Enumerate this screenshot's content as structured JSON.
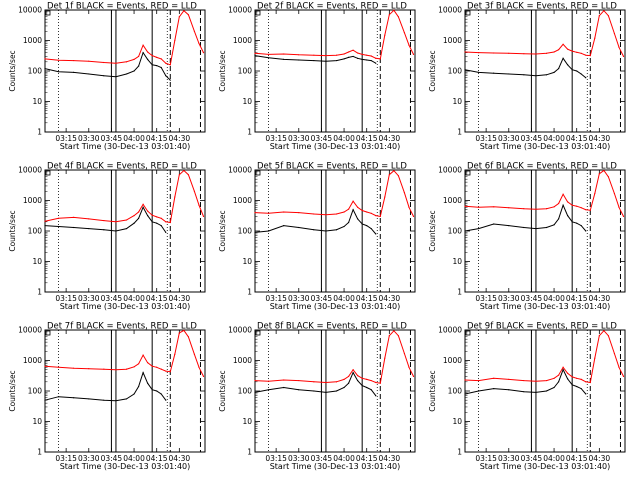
{
  "chart_data": {
    "type": "line",
    "layout": "3x3 grid",
    "y_scale": "log",
    "ylim": [
      1,
      10000
    ],
    "xlim": [
      "03:01",
      "04:47"
    ],
    "x_ticks": [
      "03:15",
      "03:30",
      "03:45",
      "04:00",
      "04:15",
      "04:30"
    ],
    "y_ticks": [
      "1",
      "10",
      "100",
      "1000",
      "10000"
    ],
    "ylabel": "Counts/sec",
    "xlabel": "Start Time (30-Dec-13 03:01:40)",
    "series_colors": {
      "events": "#000000",
      "lld": "#ff0000"
    },
    "vertical_markers": {
      "dotted": [
        "03:10",
        "04:22"
      ],
      "solid": [
        "03:45",
        "03:48",
        "04:12"
      ],
      "dashed": [
        "04:24",
        "04:44"
      ]
    },
    "panels": [
      {
        "title": "Det 1f BLACK = Events, RED = LLD",
        "x": [
          "03:01",
          "03:10",
          "03:20",
          "03:30",
          "03:40",
          "03:48",
          "03:55",
          "04:00",
          "04:03",
          "04:06",
          "04:09",
          "04:12",
          "04:15",
          "04:18",
          "04:21",
          "04:24",
          "04:27",
          "04:30",
          "04:33",
          "04:36",
          "04:40",
          "04:43",
          "04:46"
        ],
        "events": [
          120,
          95,
          90,
          80,
          70,
          65,
          80,
          100,
          145,
          400,
          240,
          160,
          150,
          130,
          70,
          50,
          0,
          0,
          0,
          0,
          0,
          0,
          0
        ],
        "lld": [
          250,
          225,
          220,
          210,
          190,
          180,
          200,
          240,
          300,
          700,
          420,
          320,
          280,
          250,
          180,
          160,
          1000,
          6000,
          9500,
          7000,
          2000,
          800,
          400
        ]
      },
      {
        "title": "Det 2f BLACK = Events, RED = LLD",
        "x": [
          "03:01",
          "03:10",
          "03:20",
          "03:30",
          "03:40",
          "03:48",
          "03:55",
          "04:00",
          "04:03",
          "04:06",
          "04:09",
          "04:12",
          "04:15",
          "04:18",
          "04:21",
          "04:24",
          "04:27",
          "04:30",
          "04:33",
          "04:36",
          "04:40",
          "04:43",
          "04:46"
        ],
        "events": [
          320,
          270,
          240,
          230,
          220,
          210,
          220,
          250,
          280,
          300,
          260,
          240,
          230,
          220,
          180,
          0,
          0,
          0,
          0,
          0,
          0,
          0,
          0
        ],
        "lld": [
          380,
          350,
          360,
          340,
          330,
          320,
          330,
          360,
          420,
          480,
          390,
          350,
          330,
          310,
          260,
          250,
          1500,
          7000,
          9800,
          6000,
          1800,
          700,
          350
        ]
      },
      {
        "title": "Det 3f BLACK = Events, RED = LLD",
        "x": [
          "03:01",
          "03:10",
          "03:20",
          "03:30",
          "03:40",
          "03:48",
          "03:55",
          "04:00",
          "04:03",
          "04:06",
          "04:09",
          "04:12",
          "04:15",
          "04:18",
          "04:21",
          "04:24",
          "04:27",
          "04:30",
          "04:33",
          "04:36",
          "04:40",
          "04:43",
          "04:46"
        ],
        "events": [
          110,
          90,
          85,
          80,
          75,
          70,
          75,
          90,
          120,
          260,
          160,
          110,
          100,
          80,
          60,
          0,
          0,
          0,
          0,
          0,
          0,
          0,
          0
        ],
        "lld": [
          420,
          400,
          390,
          380,
          370,
          360,
          380,
          420,
          500,
          750,
          520,
          450,
          410,
          380,
          330,
          320,
          1200,
          6500,
          9500,
          6500,
          1700,
          600,
          300
        ]
      },
      {
        "title": "Det 4f BLACK = Events, RED = LLD",
        "x": [
          "03:01",
          "03:10",
          "03:20",
          "03:30",
          "03:40",
          "03:48",
          "03:55",
          "04:00",
          "04:03",
          "04:06",
          "04:09",
          "04:12",
          "04:15",
          "04:18",
          "04:21",
          "04:24",
          "04:27",
          "04:30",
          "04:33",
          "04:36",
          "04:40",
          "04:43",
          "04:46"
        ],
        "events": [
          150,
          140,
          130,
          120,
          110,
          100,
          120,
          180,
          260,
          600,
          320,
          200,
          180,
          150,
          90,
          0,
          0,
          0,
          0,
          0,
          0,
          0,
          0
        ],
        "lld": [
          210,
          260,
          280,
          250,
          220,
          200,
          230,
          320,
          420,
          750,
          450,
          330,
          290,
          260,
          200,
          190,
          1300,
          7000,
          9600,
          7000,
          2000,
          700,
          300
        ]
      },
      {
        "title": "Det 5f BLACK = Events, RED = LLD",
        "x": [
          "03:01",
          "03:10",
          "03:20",
          "03:30",
          "03:40",
          "03:48",
          "03:55",
          "04:00",
          "04:03",
          "04:06",
          "04:09",
          "04:12",
          "04:15",
          "04:18",
          "04:21",
          "04:24",
          "04:27",
          "04:30",
          "04:33",
          "04:36",
          "04:40",
          "04:43",
          "04:46"
        ],
        "events": [
          90,
          100,
          150,
          130,
          110,
          100,
          110,
          140,
          190,
          500,
          250,
          170,
          150,
          120,
          80,
          0,
          0,
          0,
          0,
          0,
          0,
          0,
          0
        ],
        "lld": [
          400,
          380,
          420,
          400,
          360,
          340,
          360,
          420,
          520,
          950,
          600,
          470,
          420,
          380,
          320,
          300,
          1300,
          7000,
          9500,
          6500,
          1800,
          600,
          300
        ]
      },
      {
        "title": "Det 6f BLACK = Events, RED = LLD",
        "x": [
          "03:01",
          "03:10",
          "03:20",
          "03:30",
          "03:40",
          "03:48",
          "03:55",
          "04:00",
          "04:03",
          "04:06",
          "04:09",
          "04:12",
          "04:15",
          "04:18",
          "04:21",
          "04:24",
          "04:27",
          "04:30",
          "04:33",
          "04:36",
          "04:40",
          "04:43",
          "04:46"
        ],
        "events": [
          100,
          120,
          170,
          150,
          130,
          120,
          130,
          160,
          250,
          700,
          320,
          200,
          180,
          150,
          100,
          0,
          0,
          0,
          0,
          0,
          0,
          0,
          0
        ],
        "lld": [
          650,
          600,
          620,
          580,
          540,
          520,
          540,
          620,
          800,
          1600,
          900,
          700,
          650,
          580,
          500,
          480,
          1700,
          7500,
          9600,
          6000,
          1700,
          600,
          300
        ]
      },
      {
        "title": "Det 7f BLACK = Events, RED = LLD",
        "x": [
          "03:01",
          "03:10",
          "03:20",
          "03:30",
          "03:40",
          "03:48",
          "03:55",
          "04:00",
          "04:03",
          "04:06",
          "04:09",
          "04:12",
          "04:15",
          "04:18",
          "04:21",
          "04:24",
          "04:27",
          "04:30",
          "04:33",
          "04:36",
          "04:40",
          "04:43",
          "04:46"
        ],
        "events": [
          50,
          65,
          60,
          55,
          50,
          48,
          55,
          80,
          140,
          400,
          180,
          110,
          100,
          80,
          50,
          0,
          0,
          0,
          0,
          0,
          0,
          0,
          0
        ],
        "lld": [
          650,
          600,
          560,
          540,
          520,
          500,
          520,
          620,
          780,
          1500,
          850,
          650,
          600,
          520,
          450,
          430,
          1600,
          8000,
          9700,
          6000,
          1600,
          600,
          300
        ]
      },
      {
        "title": "Det 8f BLACK = Events, RED = LLD",
        "x": [
          "03:01",
          "03:10",
          "03:20",
          "03:30",
          "03:40",
          "03:48",
          "03:55",
          "04:00",
          "04:03",
          "04:06",
          "04:09",
          "04:12",
          "04:15",
          "04:18",
          "04:21",
          "04:24",
          "04:27",
          "04:30",
          "04:33",
          "04:36",
          "04:40",
          "04:43",
          "04:46"
        ],
        "events": [
          90,
          110,
          130,
          110,
          100,
          90,
          100,
          130,
          180,
          400,
          220,
          150,
          130,
          110,
          70,
          0,
          0,
          0,
          0,
          0,
          0,
          0,
          0
        ],
        "lld": [
          220,
          210,
          230,
          220,
          200,
          190,
          200,
          240,
          300,
          500,
          320,
          260,
          240,
          220,
          190,
          180,
          1200,
          6500,
          9400,
          6500,
          1700,
          600,
          300
        ]
      },
      {
        "title": "Det 9f BLACK = Events, RED = LLD",
        "x": [
          "03:01",
          "03:10",
          "03:20",
          "03:30",
          "03:40",
          "03:48",
          "03:55",
          "04:00",
          "04:03",
          "04:06",
          "04:09",
          "04:12",
          "04:15",
          "04:18",
          "04:21",
          "04:24",
          "04:27",
          "04:30",
          "04:33",
          "04:36",
          "04:40",
          "04:43",
          "04:46"
        ],
        "events": [
          80,
          100,
          120,
          110,
          95,
          90,
          100,
          130,
          200,
          500,
          250,
          160,
          140,
          120,
          80,
          0,
          0,
          0,
          0,
          0,
          0,
          0,
          0
        ],
        "lld": [
          230,
          220,
          260,
          240,
          220,
          210,
          220,
          260,
          330,
          600,
          380,
          290,
          260,
          240,
          200,
          190,
          1200,
          6500,
          9500,
          6500,
          1700,
          600,
          300
        ]
      }
    ]
  }
}
